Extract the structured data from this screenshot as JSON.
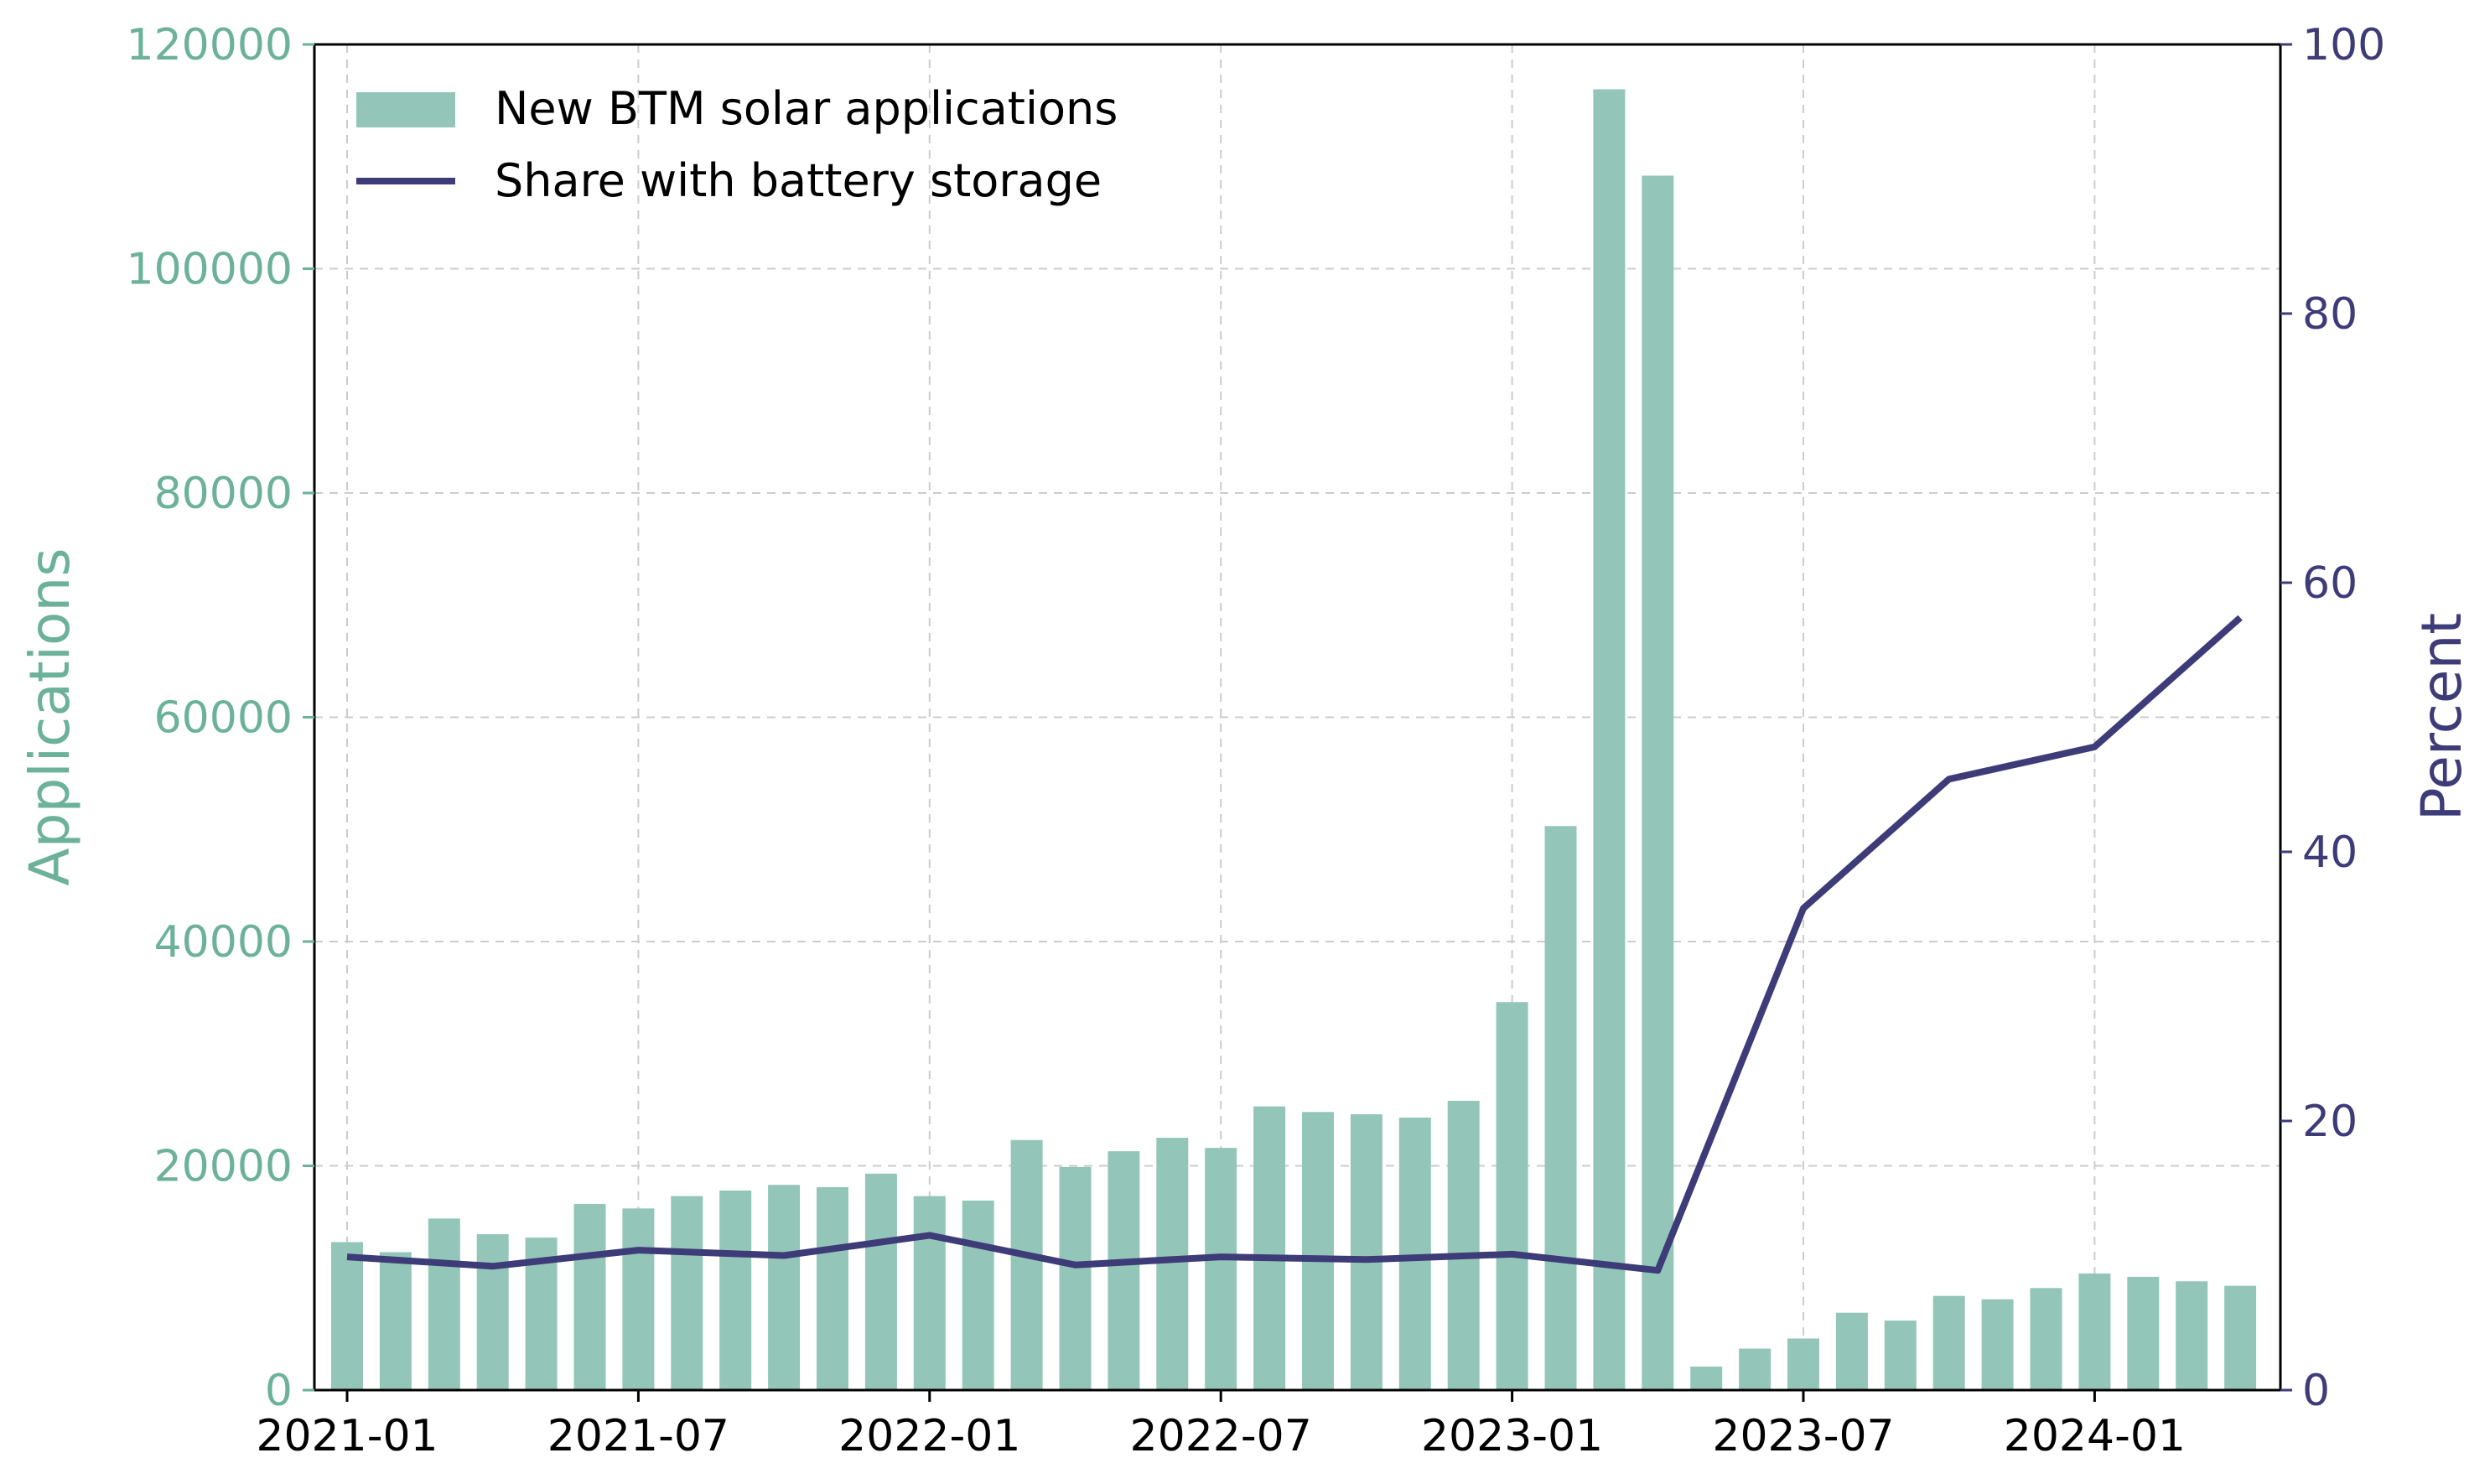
{
  "chart_data": {
    "type": "bar+line",
    "title": "",
    "xlabel": "",
    "ylabel": "Applications",
    "ylabel_right": "Percent",
    "ylim": [
      0,
      120000
    ],
    "ylim_right": [
      0,
      100
    ],
    "yticks": [
      "0",
      "20000",
      "40000",
      "60000",
      "80000",
      "100000",
      "120000"
    ],
    "yticks_right": [
      "0",
      "20",
      "40",
      "60",
      "80",
      "100"
    ],
    "xtick_labels": [
      "2021-01",
      "2021-07",
      "2022-01",
      "2022-07",
      "2023-01",
      "2023-07",
      "2024-01"
    ],
    "grid": true,
    "legend_position": "top-left",
    "colors": {
      "bars": "#93c6b8",
      "line": "#3d3b78",
      "left_axis": "#6cb19a",
      "right_axis": "#3d3b78"
    },
    "bars": {
      "name": "New BTM solar applications",
      "months": [
        "2021-01",
        "2021-02",
        "2021-03",
        "2021-04",
        "2021-05",
        "2021-06",
        "2021-07",
        "2021-08",
        "2021-09",
        "2021-10",
        "2021-11",
        "2021-12",
        "2022-01",
        "2022-02",
        "2022-03",
        "2022-04",
        "2022-05",
        "2022-06",
        "2022-07",
        "2022-08",
        "2022-09",
        "2022-10",
        "2022-11",
        "2022-12",
        "2023-01",
        "2023-02",
        "2023-03",
        "2023-04",
        "2023-05",
        "2023-06",
        "2023-07",
        "2023-08",
        "2023-09",
        "2023-10",
        "2023-11",
        "2023-12",
        "2024-01",
        "2024-02",
        "2024-03",
        "2024-04"
      ],
      "values": [
        13200,
        12300,
        15300,
        13900,
        13600,
        16600,
        16200,
        17300,
        17800,
        18300,
        18100,
        19300,
        17300,
        16900,
        22300,
        19900,
        21300,
        22500,
        21600,
        25300,
        24800,
        24600,
        24300,
        25800,
        34600,
        50300,
        116000,
        108300,
        2100,
        3700,
        4600,
        6900,
        6200,
        8400,
        8100,
        9100,
        10400,
        10100,
        9700,
        9300
      ]
    },
    "line": {
      "name": "Share with battery storage",
      "months": [
        "2021-01",
        "2021-04",
        "2021-07",
        "2021-10",
        "2022-01",
        "2022-04",
        "2022-07",
        "2022-10",
        "2023-01",
        "2023-04",
        "2023-07",
        "2023-10",
        "2024-01",
        "2024-04"
      ],
      "values": [
        9.9,
        9.2,
        10.4,
        10.0,
        11.5,
        9.3,
        9.9,
        9.7,
        10.1,
        8.9,
        35.8,
        45.4,
        47.8,
        57.4
      ]
    }
  }
}
